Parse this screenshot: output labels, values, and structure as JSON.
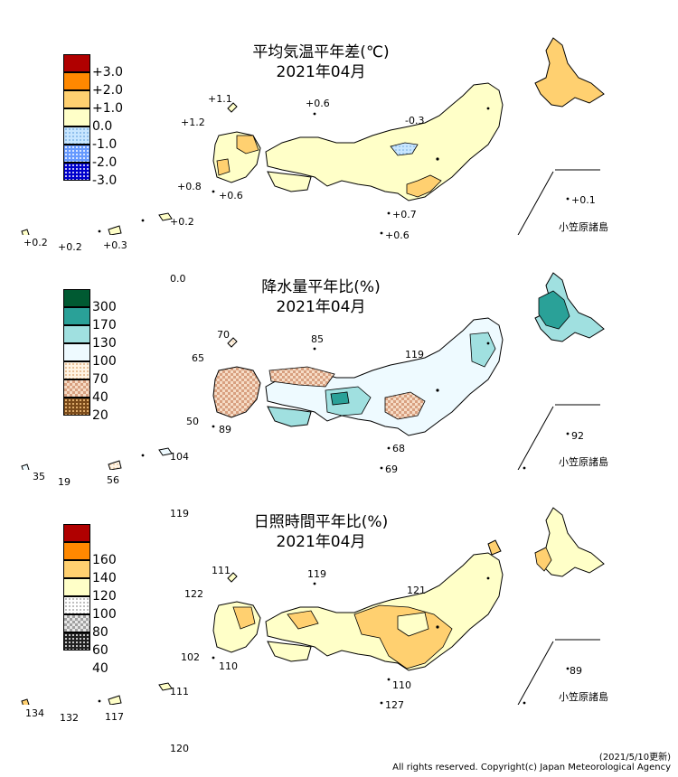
{
  "panels": [
    {
      "id": "temp",
      "title": "平均気温平年差(℃)",
      "date": "2021年04月",
      "legend": [
        {
          "label": "+3.0",
          "color": "#b00000",
          "pattern": "solid"
        },
        {
          "label": "+2.0",
          "color": "#ff8800",
          "pattern": "solid"
        },
        {
          "label": "+1.0",
          "color": "#ffd070",
          "pattern": "solid"
        },
        {
          "label": "0.0",
          "color": "#ffffc8",
          "pattern": "solid"
        },
        {
          "label": "-1.0",
          "color": "#c8e6ff",
          "pattern": "dots-light"
        },
        {
          "label": "-2.0",
          "color": "#6699ff",
          "pattern": "dots"
        },
        {
          "label": "-3.0",
          "color": "#0000cc",
          "pattern": "dots-dark"
        }
      ],
      "island_label": "小笠原諸島",
      "values": [
        "+1.1",
        "+0.6",
        "-0.3",
        "+1.2",
        "+0.8",
        "+0.6",
        "+0.7",
        "+0.6",
        "+0.2",
        "+0.2",
        "+0.3",
        "+0.2",
        "+0.1",
        "0.0"
      ]
    },
    {
      "id": "precip",
      "title": "降水量平年比(%)",
      "date": "2021年04月",
      "legend": [
        {
          "label": "300",
          "color": "#005a32",
          "pattern": "solid"
        },
        {
          "label": "170",
          "color": "#2aa198",
          "pattern": "solid"
        },
        {
          "label": "130",
          "color": "#a0e0e0",
          "pattern": "solid"
        },
        {
          "label": "100",
          "color": "#eefaff",
          "pattern": "solid"
        },
        {
          "label": "70",
          "color": "#ffe8c8",
          "pattern": "dots-light"
        },
        {
          "label": "40",
          "color": "#d8a080",
          "pattern": "checker"
        },
        {
          "label": "20",
          "color": "#7a4a1a",
          "pattern": "dots-dark"
        }
      ],
      "island_label": "小笠原諸島",
      "values": [
        "70",
        "85",
        "119",
        "65",
        "50",
        "89",
        "68",
        "69",
        "35",
        "19",
        "56",
        "104",
        "92",
        "119"
      ]
    },
    {
      "id": "sun",
      "title": "日照時間平年比(%)",
      "date": "2021年04月",
      "legend": [
        {
          "label": "160",
          "color": "#b00000",
          "pattern": "solid"
        },
        {
          "label": "140",
          "color": "#ff8800",
          "pattern": "solid"
        },
        {
          "label": "120",
          "color": "#ffd070",
          "pattern": "solid"
        },
        {
          "label": "100",
          "color": "#ffffc8",
          "pattern": "solid"
        },
        {
          "label": "80",
          "color": "#f0f0f0",
          "pattern": "dots-light"
        },
        {
          "label": "60",
          "color": "#b0b0b0",
          "pattern": "checker"
        },
        {
          "label": "40",
          "color": "#303030",
          "pattern": "dots-dark"
        }
      ],
      "island_label": "小笠原諸島",
      "values": [
        "111",
        "119",
        "122",
        "121",
        "102",
        "110",
        "110",
        "127",
        "134",
        "132",
        "117",
        "111",
        "89",
        "120"
      ]
    }
  ],
  "footer": {
    "updated": "(2021/5/10更新)",
    "copyright": "All rights reserved. Copyright(c) Japan Meteorological Agency"
  }
}
